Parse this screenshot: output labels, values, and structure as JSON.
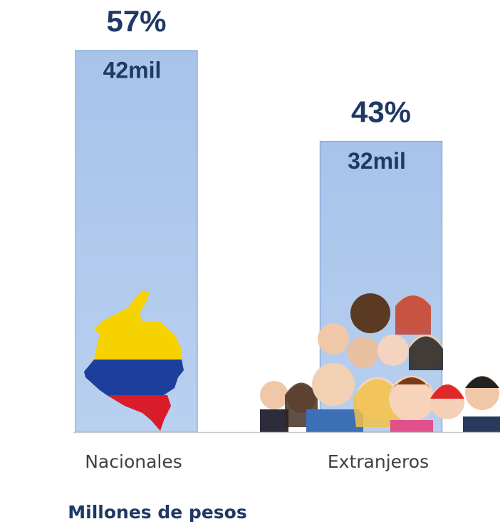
{
  "chart_data": {
    "type": "bar",
    "title": "Millones de pesos",
    "categories": [
      "Nacionales",
      "Extranjeros"
    ],
    "values": [
      42,
      32
    ],
    "value_labels": [
      "42mil",
      "32mil"
    ],
    "percent_values": [
      57,
      43
    ],
    "percent_labels": [
      "57%",
      "43%"
    ],
    "color": "#aec8eb"
  }
}
